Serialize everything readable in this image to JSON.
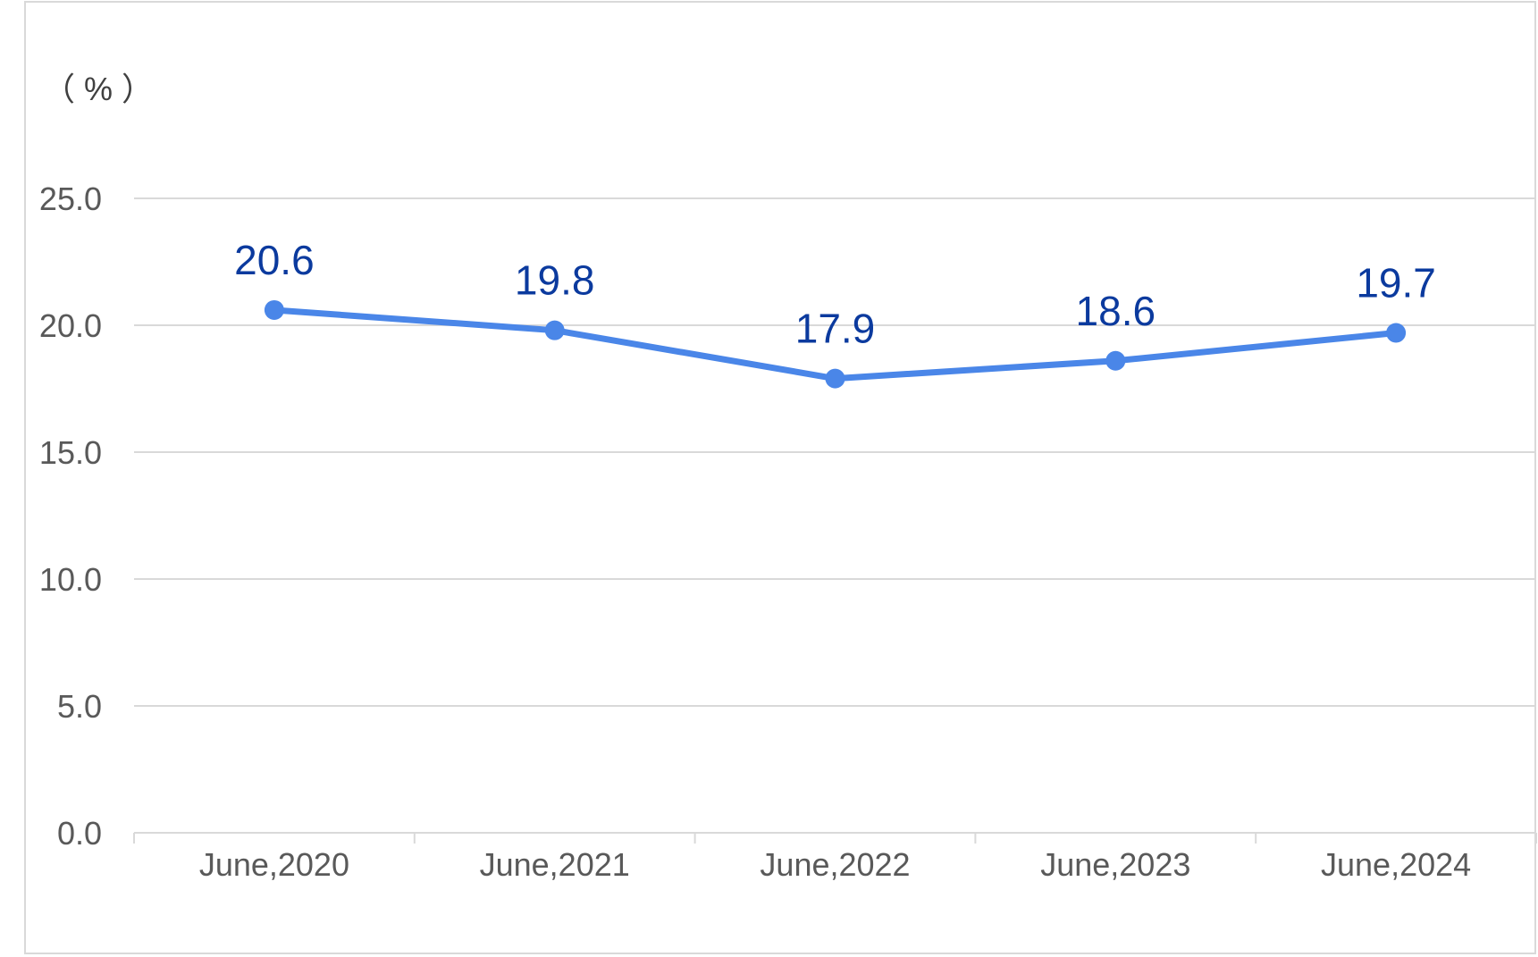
{
  "chart_data": {
    "type": "line",
    "title": "",
    "xlabel": "",
    "ylabel": "（ % ）",
    "categories": [
      "June,2020",
      "June,2021",
      "June,2022",
      "June,2023",
      "June,2024"
    ],
    "series": [
      {
        "values": [
          20.6,
          19.8,
          17.9,
          18.6,
          19.7
        ]
      }
    ],
    "data_labels": [
      "20.6",
      "19.8",
      "17.9",
      "18.6",
      "19.7"
    ],
    "y_ticks": [
      "0.0",
      "5.0",
      "10.0",
      "15.0",
      "20.0",
      "25.0"
    ],
    "ylim": [
      0,
      25
    ],
    "grid": true,
    "legend": "none",
    "colors": {
      "line": "#4a86e8",
      "label": "#0b3a9e",
      "grid": "#d9d9d9",
      "tick_text": "#595959"
    }
  }
}
